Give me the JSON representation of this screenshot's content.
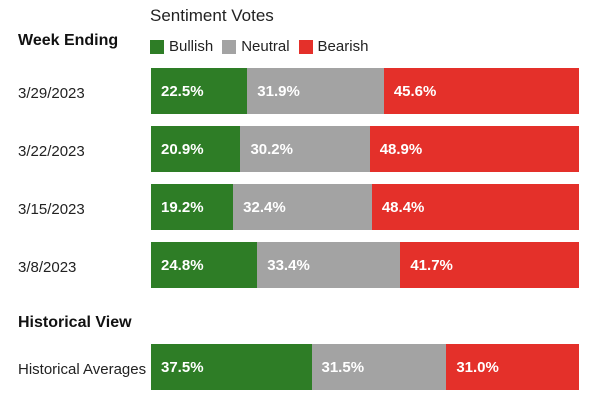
{
  "chart_data": {
    "type": "bar",
    "title": "Sentiment Votes",
    "orientation": "horizontal",
    "stacked": "100%",
    "legend": {
      "placement": "top",
      "items": [
        "Bullish",
        "Neutral",
        "Bearish"
      ]
    },
    "colors": {
      "Bullish": "#2e7d26",
      "Neutral": "#a3a3a3",
      "Bearish": "#e4302a"
    },
    "sections": [
      {
        "heading": "Week Ending",
        "rows": [
          {
            "label": "3/29/2023",
            "values": [
              22.5,
              31.9,
              45.6
            ],
            "value_labels": [
              "22.5%",
              "31.9%",
              "45.6%"
            ]
          },
          {
            "label": "3/22/2023",
            "values": [
              20.9,
              30.2,
              48.9
            ],
            "value_labels": [
              "20.9%",
              "30.2%",
              "48.9%"
            ]
          },
          {
            "label": "3/15/2023",
            "values": [
              19.2,
              32.4,
              48.4
            ],
            "value_labels": [
              "19.2%",
              "32.4%",
              "48.4%"
            ]
          },
          {
            "label": "3/8/2023",
            "values": [
              24.8,
              33.4,
              41.7
            ],
            "value_labels": [
              "24.8%",
              "33.4%",
              "41.7%"
            ]
          }
        ]
      },
      {
        "heading": "Historical View",
        "rows": [
          {
            "label": "Historical Averages",
            "values": [
              37.5,
              31.5,
              31.0
            ],
            "value_labels": [
              "37.5%",
              "31.5%",
              "31.0%"
            ]
          }
        ]
      }
    ]
  }
}
